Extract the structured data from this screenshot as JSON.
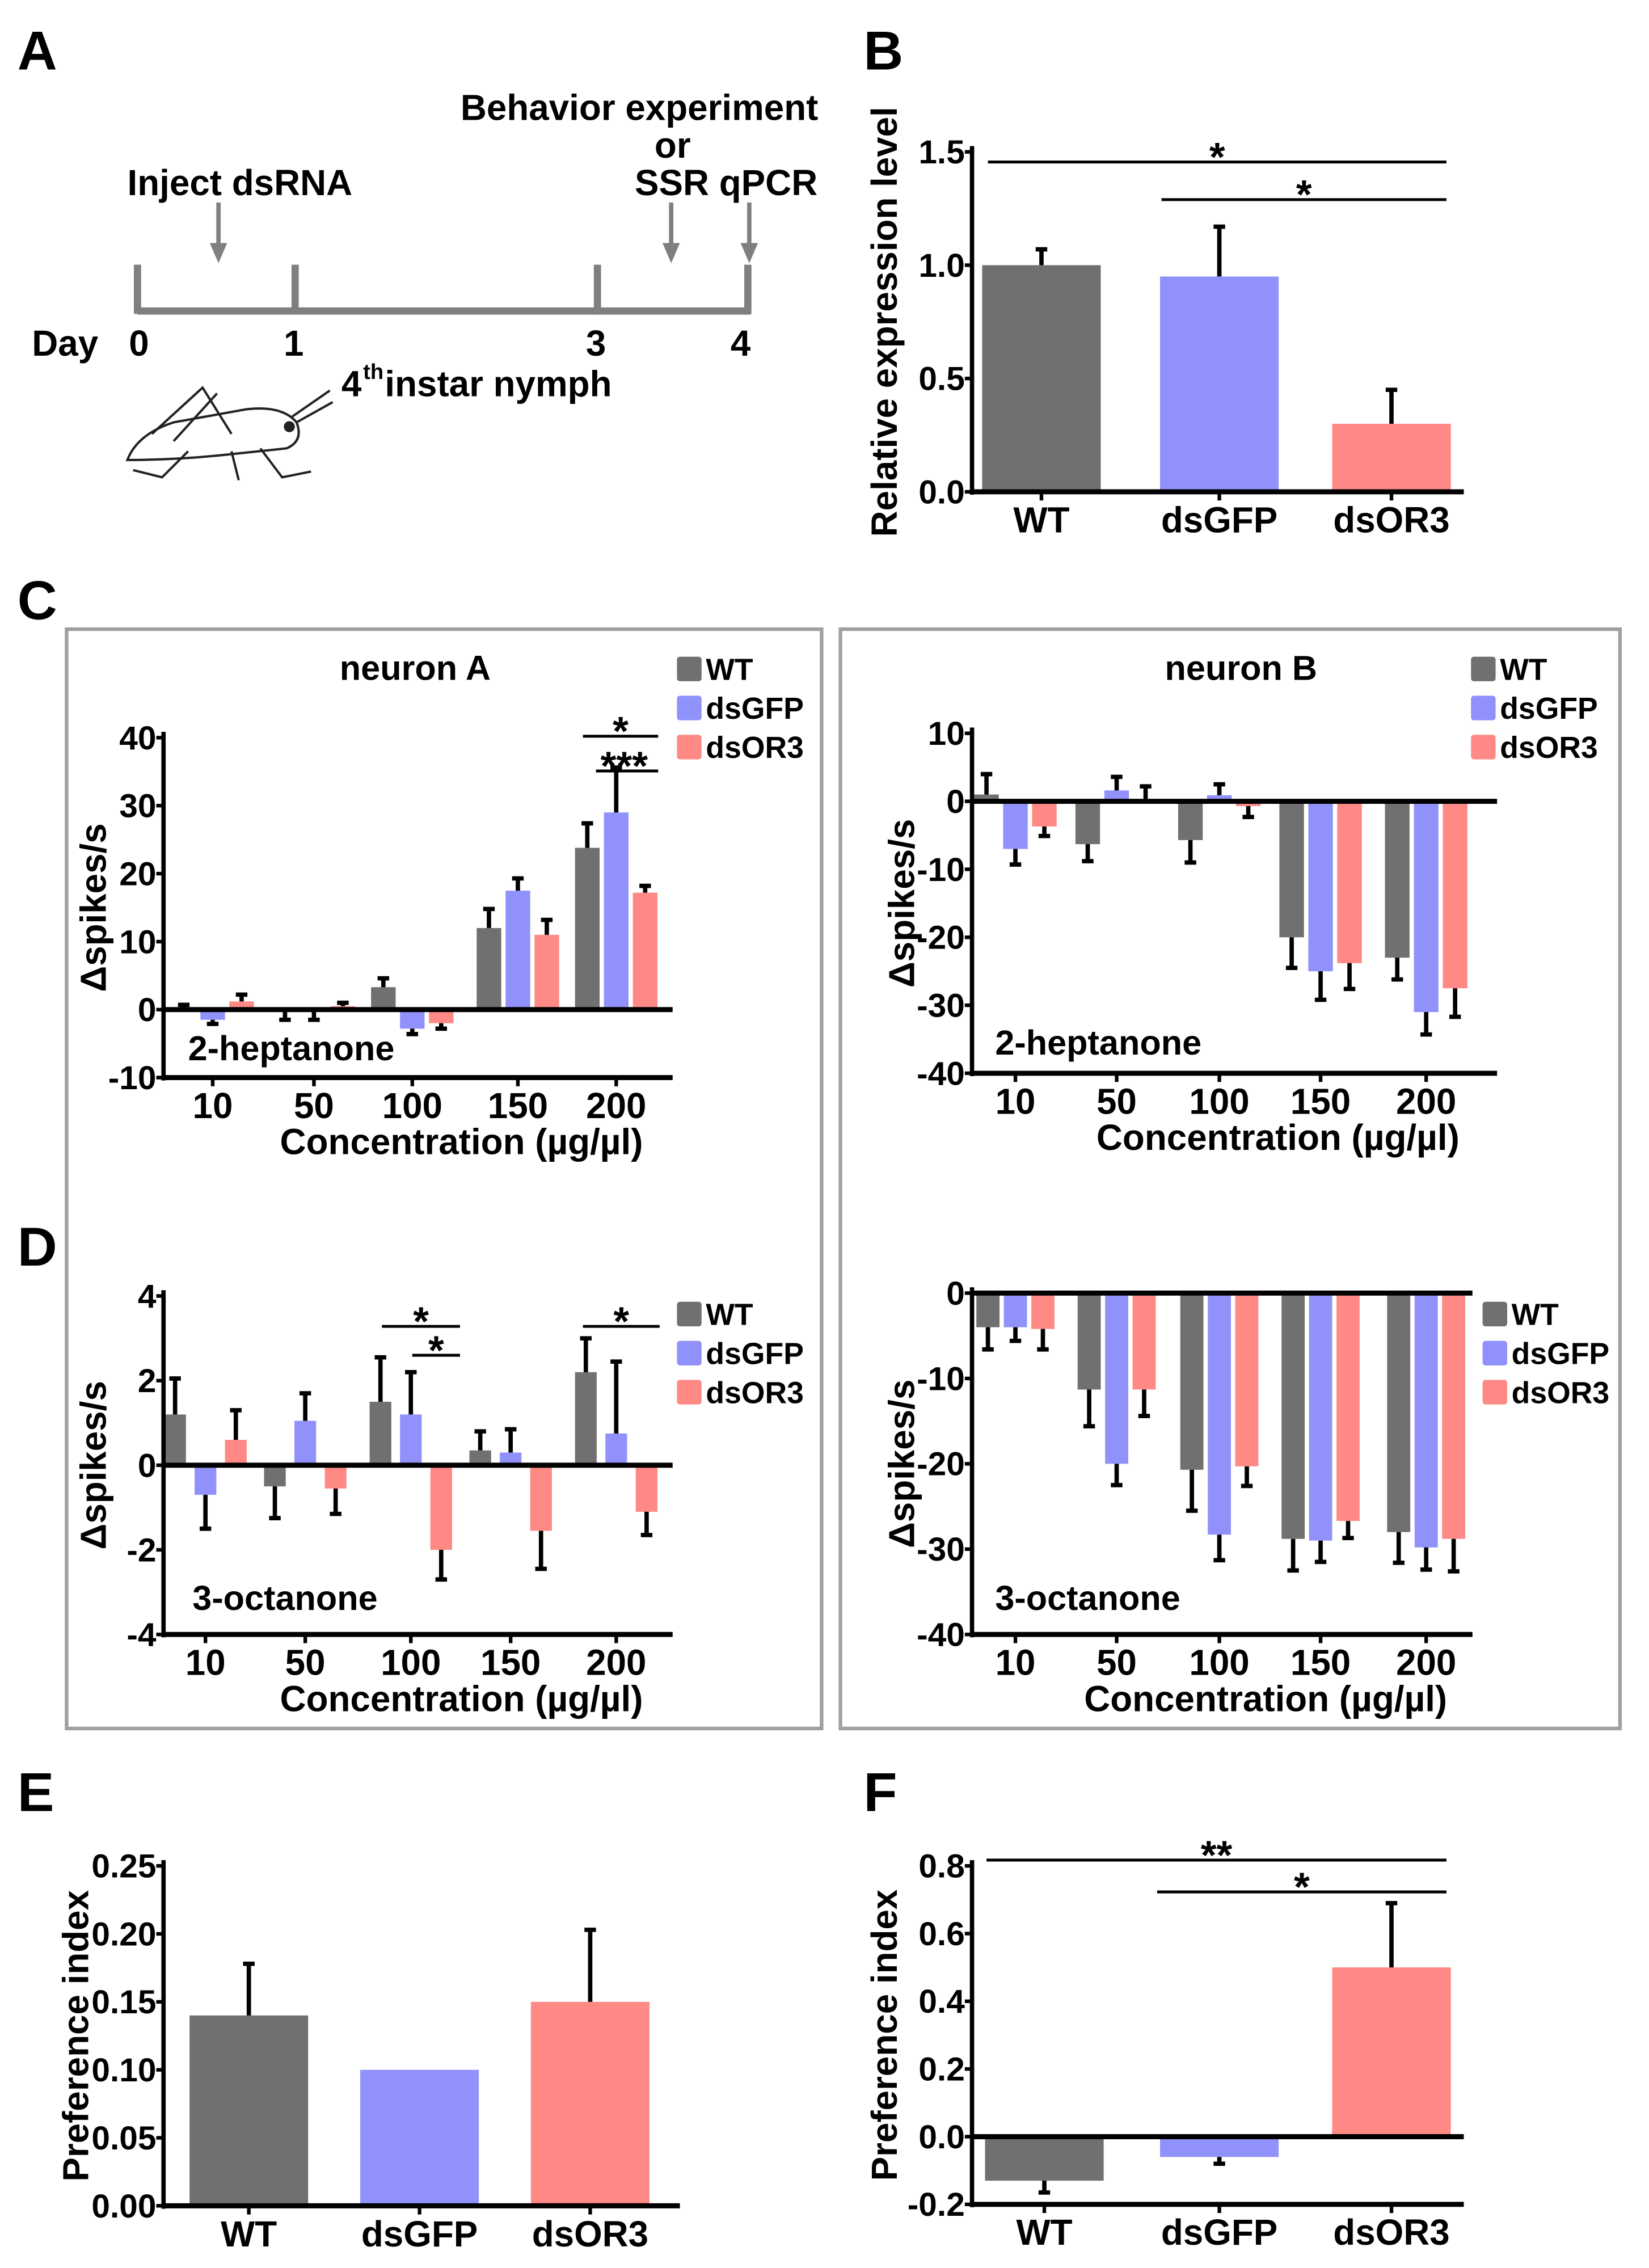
{
  "panel_labels": [
    "A",
    "B",
    "C",
    "D",
    "E",
    "F"
  ],
  "panel_a": {
    "behavior": "Behavior experiment",
    "or": "or",
    "ssr_qpcr": "SSR qPCR",
    "inject": "Inject dsRNA",
    "day": "Day",
    "days": [
      "0",
      "1",
      "3",
      "4"
    ],
    "instar_num": "4",
    "instar_sup": "th",
    "instar_rest": " instar nymph",
    "line_color": "#7f7f7f"
  },
  "colors": {
    "WT": "#707070",
    "dsGFP": "#9191fb",
    "dsOR3": "#fe8985"
  },
  "chart_data": [
    {
      "id": "B",
      "type": "bar",
      "title": "",
      "xlabel": "",
      "ylabel": "Relative expression level",
      "categories": [
        "WT",
        "dsGFP",
        "dsOR3"
      ],
      "values": [
        1.0,
        0.95,
        0.3
      ],
      "errors": [
        0.07,
        0.22,
        0.15
      ],
      "ylim": [
        0,
        1.5
      ],
      "yticks": [
        0,
        0.5,
        1.0,
        1.5
      ],
      "yticklabels": [
        "0.0",
        "0.5",
        "1.0",
        "1.5"
      ],
      "significance": [
        {
          "label": "*",
          "from": "WT",
          "to": "dsOR3"
        },
        {
          "label": "*",
          "from": "dsGFP",
          "to": "dsOR3"
        }
      ]
    },
    {
      "id": "C-neuronA",
      "type": "bar",
      "title": "neuron A",
      "odor": "2-heptanone",
      "xlabel": "Concentration (µg/µl)",
      "ylabel": "Δspikes/s",
      "categories": [
        "10",
        "50",
        "100",
        "150",
        "200"
      ],
      "series": [
        {
          "name": "WT",
          "values": [
            0.1,
            -0.3,
            3.3,
            12,
            23.8
          ],
          "errors": [
            0.6,
            1.2,
            1.3,
            2.8,
            3.6
          ]
        },
        {
          "name": "dsGFP",
          "values": [
            -1.5,
            -0.3,
            -2.8,
            17.5,
            29
          ],
          "errors": [
            0.6,
            1.2,
            0.8,
            1.8,
            6.6
          ]
        },
        {
          "name": "dsOR3",
          "values": [
            1.2,
            0.5,
            -2.0,
            11,
            17.2
          ],
          "errors": [
            1.0,
            0.5,
            0.8,
            2.2,
            1.0
          ]
        }
      ],
      "ylim": [
        -10,
        40
      ],
      "yticks": [
        -10,
        0,
        10,
        20,
        30,
        40
      ],
      "yticklabels": [
        "-10",
        "0",
        "10",
        "20",
        "30",
        "40"
      ],
      "legend": "top-right",
      "significance": [
        {
          "label": "*",
          "category": "200",
          "from": "WT",
          "to": "dsOR3"
        },
        {
          "label": "***",
          "category": "200",
          "from": "dsGFP",
          "to": "dsOR3"
        }
      ]
    },
    {
      "id": "C-neuronB",
      "type": "bar",
      "title": "neuron B",
      "odor": "2-heptanone",
      "xlabel": "Concentration (µg/µl)",
      "ylabel": "Δspikes/s",
      "categories": [
        "10",
        "50",
        "100",
        "150",
        "200"
      ],
      "series": [
        {
          "name": "WT",
          "values": [
            1.0,
            -6.3,
            -5.7,
            -20,
            -23
          ],
          "errors": [
            3.0,
            2.5,
            3.3,
            4.5,
            3.2
          ]
        },
        {
          "name": "dsGFP",
          "values": [
            -7,
            1.6,
            0.9,
            -25,
            -31
          ],
          "errors": [
            2.3,
            2.0,
            1.6,
            4.2,
            3.3
          ]
        },
        {
          "name": "dsOR3",
          "values": [
            -3.7,
            0.2,
            -0.7,
            -23.8,
            -27.5
          ],
          "errors": [
            1.4,
            2.0,
            1.6,
            3.8,
            4.2
          ]
        }
      ],
      "ylim": [
        -40,
        10
      ],
      "yticks": [
        -40,
        -30,
        -20,
        -10,
        0,
        10
      ],
      "yticklabels": [
        "-40",
        "-30",
        "-20",
        "-10",
        "0",
        "10"
      ],
      "legend": "top-right",
      "significance": []
    },
    {
      "id": "D-neuronA",
      "type": "bar",
      "title": "",
      "odor": "3-octanone",
      "xlabel": "Concentration (µg/µl)",
      "ylabel": "Δspikes/s",
      "categories": [
        "10",
        "50",
        "100",
        "150",
        "200"
      ],
      "series": [
        {
          "name": "WT",
          "values": [
            1.2,
            -0.5,
            1.5,
            0.35,
            2.2
          ],
          "errors": [
            0.85,
            0.75,
            1.05,
            0.45,
            0.8
          ]
        },
        {
          "name": "dsGFP",
          "values": [
            -0.7,
            1.05,
            1.2,
            0.3,
            0.75
          ],
          "errors": [
            0.8,
            0.65,
            1.0,
            0.55,
            1.7
          ]
        },
        {
          "name": "dsOR3",
          "values": [
            0.6,
            -0.55,
            -2.0,
            -1.55,
            -1.1
          ],
          "errors": [
            0.7,
            0.6,
            0.7,
            0.9,
            0.55
          ]
        }
      ],
      "ylim": [
        -4,
        4
      ],
      "yticks": [
        -4,
        -2,
        0,
        2,
        4
      ],
      "yticklabels": [
        "-4",
        "-2",
        "0",
        "2",
        "4"
      ],
      "legend": "top-right",
      "significance": [
        {
          "label": "*",
          "category": "100",
          "from": "WT",
          "to": "dsOR3"
        },
        {
          "label": "*",
          "category": "100",
          "from": "dsGFP",
          "to": "dsOR3"
        },
        {
          "label": "*",
          "category": "200",
          "from": "WT",
          "to": "dsOR3"
        }
      ]
    },
    {
      "id": "D-neuronB",
      "type": "bar",
      "title": "",
      "odor": "3-octanone",
      "xlabel": "Concentration (µg/µl)",
      "ylabel": "Δspikes/s",
      "categories": [
        "10",
        "50",
        "100",
        "150",
        "200"
      ],
      "series": [
        {
          "name": "WT",
          "values": [
            -4,
            -11.3,
            -20.7,
            -28.8,
            -28
          ],
          "errors": [
            2.6,
            4.3,
            4.8,
            3.7,
            3.6
          ]
        },
        {
          "name": "dsGFP",
          "values": [
            -4,
            -20,
            -28.3,
            -29,
            -29.8
          ],
          "errors": [
            1.6,
            2.5,
            3.0,
            2.5,
            2.6
          ]
        },
        {
          "name": "dsOR3",
          "values": [
            -4.2,
            -11.3,
            -20.3,
            -26.7,
            -28.8
          ],
          "errors": [
            2.4,
            3.1,
            2.3,
            2.0,
            3.8
          ]
        }
      ],
      "ylim": [
        -40,
        0
      ],
      "yticks": [
        -40,
        -30,
        -20,
        -10,
        0
      ],
      "yticklabels": [
        "-40",
        "-30",
        "-20",
        "-10",
        "0"
      ],
      "legend": "right",
      "significance": []
    },
    {
      "id": "E",
      "type": "bar",
      "title": "",
      "xlabel": "",
      "ylabel": "Preference index",
      "categories": [
        "WT",
        "dsGFP",
        "dsOR3"
      ],
      "values": [
        0.14,
        0.1,
        0.15
      ],
      "errors": [
        0.038,
        0,
        0.053
      ],
      "ylim": [
        0,
        0.25
      ],
      "yticks": [
        0,
        0.05,
        0.1,
        0.15,
        0.2,
        0.25
      ],
      "yticklabels": [
        "0.00",
        "0.05",
        "0.10",
        "0.15",
        "0.20",
        "0.25"
      ],
      "significance": []
    },
    {
      "id": "F",
      "type": "bar",
      "title": "",
      "xlabel": "",
      "ylabel": "Preference index",
      "categories": [
        "WT",
        "dsGFP",
        "dsOR3"
      ],
      "values": [
        -0.13,
        -0.06,
        0.5
      ],
      "errors": [
        0.035,
        0.02,
        0.19
      ],
      "ylim": [
        -0.2,
        0.8
      ],
      "yticks": [
        -0.2,
        0,
        0.2,
        0.4,
        0.6,
        0.8
      ],
      "yticklabels": [
        "-0.2",
        "0.0",
        "0.2",
        "0.4",
        "0.6",
        "0.8"
      ],
      "significance": [
        {
          "label": "**",
          "from": "WT",
          "to": "dsOR3"
        },
        {
          "label": "*",
          "from": "dsGFP",
          "to": "dsOR3"
        }
      ]
    }
  ]
}
